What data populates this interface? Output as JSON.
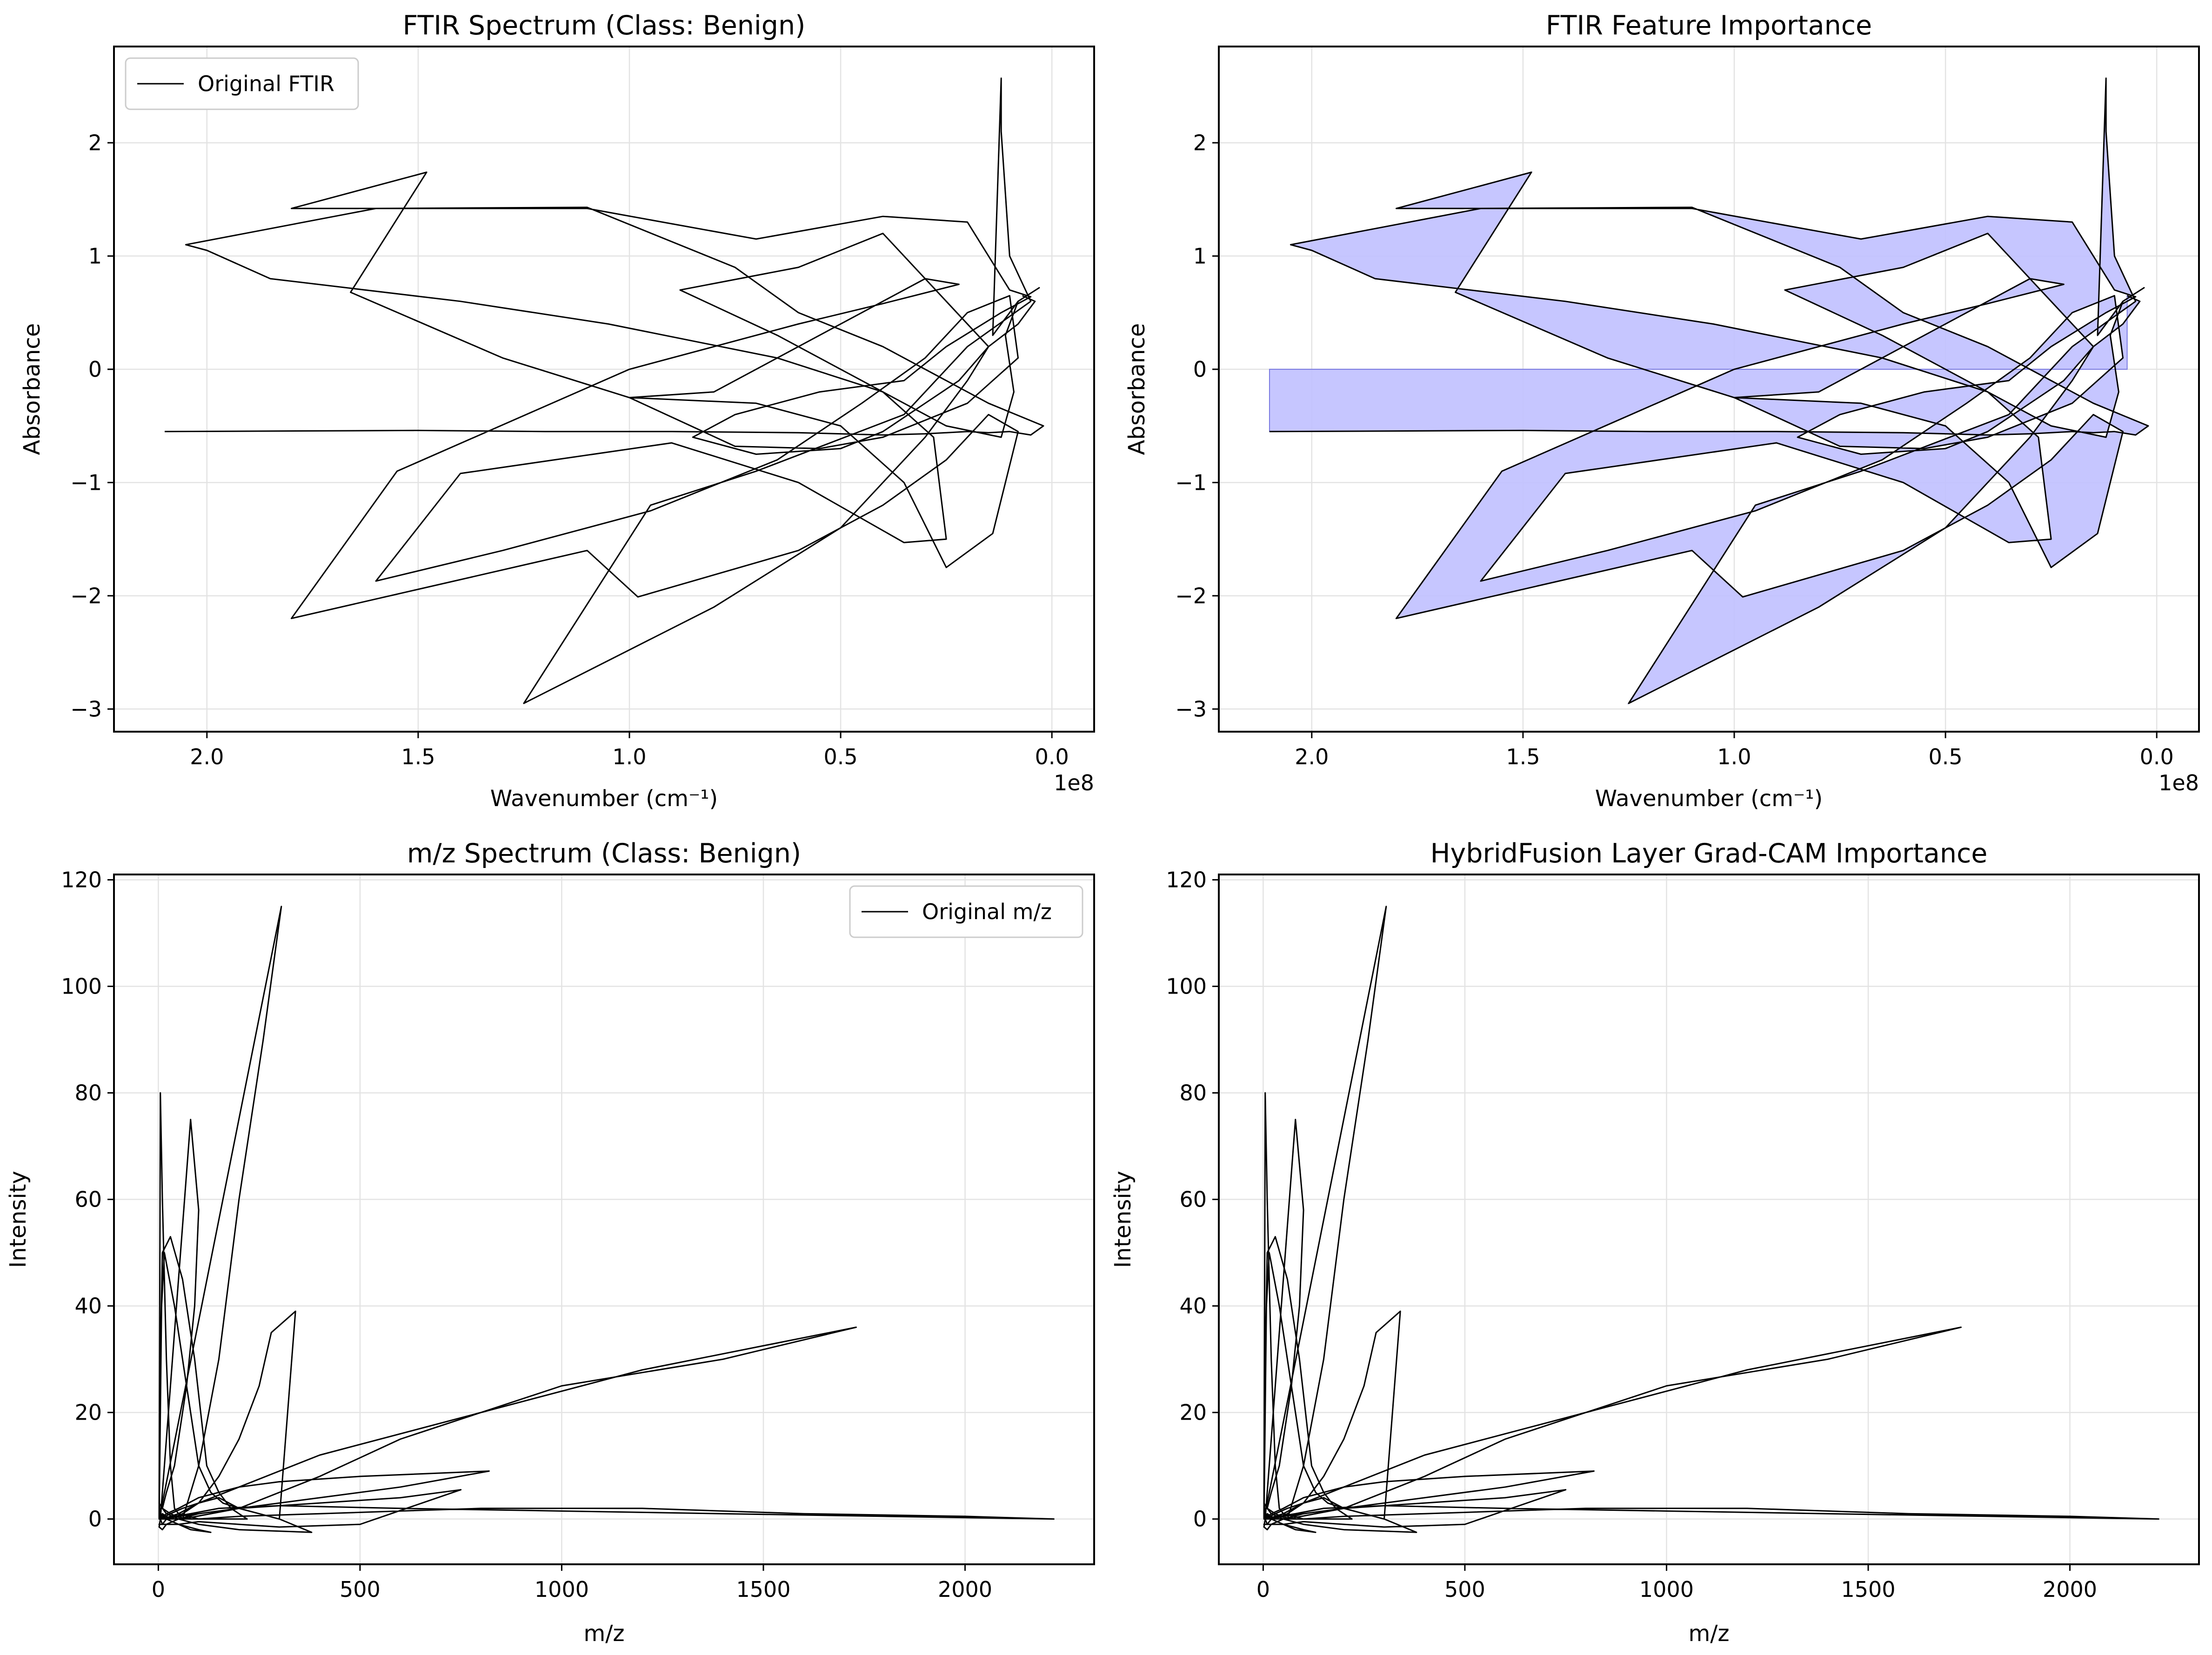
{
  "figure": {
    "background": "#ffffff",
    "line_color": "#000000",
    "fill_color": "#c3c3ff",
    "fill_edge_color": "#7373e0"
  },
  "chart_data": [
    {
      "id": "ftir-spectrum",
      "type": "line",
      "title": "FTIR Spectrum (Class: Benign)",
      "xlabel": "Wavenumber (cm⁻¹)",
      "ylabel": "Absorbance",
      "x_offset_label": "1e8",
      "x_inverted": true,
      "xlim": [
        222000000,
        -10000000
      ],
      "ylim": [
        -3.2,
        2.85
      ],
      "xticks": [
        200000000,
        150000000,
        100000000,
        50000000,
        0
      ],
      "xtick_labels": [
        "2.0",
        "1.5",
        "1.0",
        "0.5",
        "0.0"
      ],
      "yticks": [
        -3,
        -2,
        -1,
        0,
        1,
        2
      ],
      "ytick_labels": [
        "−3",
        "−2",
        "−1",
        "0",
        "1",
        "2"
      ],
      "grid": true,
      "legend": {
        "position": "top-left",
        "entries": [
          "Original FTIR"
        ]
      },
      "fill_to_zero": false,
      "series": [
        {
          "name": "Original FTIR",
          "x": [
            210000000,
            150000000,
            120000000,
            90000000,
            60000000,
            40000000,
            30000000,
            20000000,
            15000000,
            10000000,
            5000000,
            2000000,
            15000000,
            40000000,
            60000000,
            75000000,
            110000000,
            160000000,
            205000000,
            200000000,
            185000000,
            140000000,
            105000000,
            65000000,
            40000000,
            25000000,
            12000000,
            9000000,
            11000000,
            8000000,
            3000000,
            8000000,
            14000000,
            12000000,
            12000000,
            10000000,
            5000000,
            20000000,
            35000000,
            70000000,
            95000000,
            125000000,
            80000000,
            50000000,
            30000000,
            20000000,
            15000000,
            25000000,
            40000000,
            60000000,
            88000000,
            65000000,
            40000000,
            28000000,
            25000000,
            35000000,
            60000000,
            90000000,
            140000000,
            160000000,
            130000000,
            95000000,
            65000000,
            45000000,
            30000000,
            20000000,
            10000000,
            8000000,
            20000000,
            40000000,
            55000000,
            75000000,
            100000000,
            80000000,
            60000000,
            45000000,
            30000000,
            22000000,
            40000000,
            60000000,
            80000000,
            100000000,
            155000000,
            180000000,
            110000000,
            98000000,
            60000000,
            40000000,
            25000000,
            15000000,
            8000000,
            14000000,
            25000000,
            35000000,
            50000000,
            70000000,
            100000000,
            130000000,
            166000000,
            148000000,
            180000000,
            110000000,
            70000000,
            40000000,
            20000000,
            10000000,
            5000000,
            12000000,
            25000000,
            35000000,
            55000000,
            75000000,
            85000000,
            70000000,
            50000000,
            40000000,
            30000000,
            22000000,
            15000000,
            8000000,
            4000000,
            7000000
          ],
          "y": [
            -0.55,
            -0.54,
            -0.55,
            -0.55,
            -0.56,
            -0.58,
            -0.57,
            -0.55,
            -0.56,
            -0.55,
            -0.58,
            -0.5,
            -0.3,
            0.2,
            0.5,
            0.9,
            1.43,
            1.42,
            1.1,
            1.05,
            0.8,
            0.6,
            0.4,
            0.1,
            -0.2,
            -0.5,
            -0.6,
            -0.2,
            0.3,
            0.6,
            0.72,
            0.6,
            0.3,
            2.57,
            2.1,
            1.0,
            0.6,
            0.2,
            -0.4,
            -0.9,
            -1.2,
            -2.95,
            -2.1,
            -1.4,
            -0.6,
            -0.1,
            0.2,
            0.6,
            1.2,
            0.9,
            0.7,
            0.3,
            -0.2,
            -0.6,
            -1.5,
            -1.53,
            -1.0,
            -0.65,
            -0.92,
            -1.87,
            -1.6,
            -1.25,
            -0.8,
            -0.3,
            0.1,
            0.5,
            0.65,
            0.1,
            -0.3,
            -0.6,
            -0.7,
            -0.68,
            -0.25,
            -0.2,
            0.2,
            0.5,
            0.8,
            0.75,
            0.58,
            0.4,
            0.2,
            0.0,
            -0.9,
            -2.2,
            -1.6,
            -2.01,
            -1.6,
            -1.2,
            -0.8,
            -0.4,
            -0.55,
            -1.45,
            -1.75,
            -1.0,
            -0.5,
            -0.3,
            -0.25,
            0.1,
            0.68,
            1.74,
            1.42,
            1.42,
            1.15,
            1.35,
            1.3,
            0.7,
            0.64,
            0.5,
            0.2,
            -0.1,
            -0.2,
            -0.4,
            -0.6,
            -0.75,
            -0.7,
            -0.55,
            -0.3,
            -0.1,
            0.2,
            0.4,
            0.6,
            0.65
          ]
        }
      ]
    },
    {
      "id": "ftir-importance",
      "type": "area",
      "title": "FTIR Feature Importance",
      "xlabel": "Wavenumber (cm⁻¹)",
      "ylabel": "Absorbance",
      "x_offset_label": "1e8",
      "x_inverted": true,
      "xlim": [
        222000000,
        -10000000
      ],
      "ylim": [
        -3.2,
        2.85
      ],
      "xticks": [
        200000000,
        150000000,
        100000000,
        50000000,
        0
      ],
      "xtick_labels": [
        "2.0",
        "1.5",
        "1.0",
        "0.5",
        "0.0"
      ],
      "yticks": [
        -3,
        -2,
        -1,
        0,
        1,
        2
      ],
      "ytick_labels": [
        "−3",
        "−2",
        "−1",
        "0",
        "1",
        "2"
      ],
      "grid": true,
      "legend": null,
      "fill_to_zero": true,
      "same_series_as": "ftir-spectrum"
    },
    {
      "id": "mz-spectrum",
      "type": "line",
      "title": "m/z Spectrum (Class: Benign)",
      "xlabel": "m/z",
      "ylabel": "Intensity",
      "x_inverted": false,
      "xlim": [
        -110,
        2320
      ],
      "ylim": [
        -8.5,
        121
      ],
      "xticks": [
        0,
        500,
        1000,
        1500,
        2000
      ],
      "xtick_labels": [
        "0",
        "500",
        "1000",
        "1500",
        "2000"
      ],
      "yticks": [
        0,
        20,
        40,
        60,
        80,
        100,
        120
      ],
      "ytick_labels": [
        "0",
        "20",
        "40",
        "60",
        "80",
        "100",
        "120"
      ],
      "grid": true,
      "legend": {
        "position": "top-right",
        "entries": [
          "Original m/z"
        ]
      },
      "fill_to_zero": false,
      "series": [
        {
          "name": "Original m/z",
          "x": [
            2,
            5,
            10,
            20,
            30,
            40,
            60,
            80,
            100,
            150,
            200,
            260,
            305,
            2,
            5,
            10,
            30,
            60,
            90,
            120,
            150,
            180,
            200,
            220,
            2,
            5,
            8,
            15,
            40,
            60,
            80,
            100,
            130,
            160,
            200,
            250,
            300,
            340,
            280,
            250,
            200,
            150,
            100,
            60,
            30,
            10,
            5,
            80,
            100,
            90,
            70,
            40,
            20,
            10,
            30,
            60,
            200,
            400,
            600,
            1000,
            1400,
            1730,
            1200,
            800,
            400,
            200,
            100,
            50,
            20,
            10,
            50,
            100,
            200,
            400,
            800,
            1200,
            1600,
            2000,
            2220,
            1800,
            1400,
            1000,
            600,
            300,
            150,
            80,
            40,
            20,
            10,
            2,
            50,
            100,
            200,
            300,
            500,
            750,
            600,
            400,
            200,
            100,
            50,
            20,
            10,
            5,
            20,
            50,
            100,
            200,
            300,
            500,
            820,
            600,
            400,
            200,
            100,
            50,
            20,
            10,
            2,
            5,
            30,
            60,
            100,
            150,
            200,
            300,
            380,
            200,
            100,
            50,
            20,
            10,
            2,
            5,
            20,
            50,
            100,
            130,
            80,
            50,
            20,
            10
          ],
          "y": [
            0,
            80,
            60,
            30,
            10,
            2,
            0,
            5,
            10,
            30,
            60,
            90,
            115,
            0,
            30,
            50,
            53,
            45,
            30,
            10,
            5,
            2,
            1,
            0,
            0,
            20,
            40,
            50,
            40,
            30,
            20,
            10,
            5,
            3,
            2,
            1,
            0,
            39,
            35,
            25,
            15,
            8,
            3,
            1,
            0,
            1,
            0,
            75,
            58,
            40,
            25,
            10,
            5,
            2,
            1,
            0,
            2,
            8,
            15,
            25,
            30,
            36,
            28,
            20,
            12,
            6,
            3,
            1,
            0,
            0,
            1,
            0,
            0.5,
            1,
            2,
            2,
            1,
            0.5,
            0,
            0.5,
            1,
            1.5,
            2,
            2.5,
            2,
            1,
            0.5,
            0,
            -1,
            -1,
            -1,
            -0.5,
            -1,
            -1.5,
            -1,
            5.5,
            4,
            3,
            2,
            1,
            0.5,
            0,
            -1,
            0,
            1,
            2,
            4,
            6,
            7,
            8,
            9,
            6,
            4,
            2,
            1,
            0,
            -1,
            -2,
            -1.5,
            0,
            1,
            2,
            3,
            4,
            2,
            0,
            -2.5,
            -2,
            -1,
            0,
            1,
            2,
            3,
            1,
            0,
            -1,
            -2,
            -2.5,
            -2,
            -1,
            0,
            1
          ]
        }
      ]
    },
    {
      "id": "hybridfusion-gradcam",
      "type": "line",
      "title": "HybridFusion Layer Grad-CAM Importance",
      "xlabel": "m/z",
      "ylabel": "Intensity",
      "x_inverted": false,
      "xlim": [
        -110,
        2320
      ],
      "ylim": [
        -8.5,
        121
      ],
      "xticks": [
        0,
        500,
        1000,
        1500,
        2000
      ],
      "xtick_labels": [
        "0",
        "500",
        "1000",
        "1500",
        "2000"
      ],
      "yticks": [
        0,
        20,
        40,
        60,
        80,
        100,
        120
      ],
      "ytick_labels": [
        "0",
        "20",
        "40",
        "60",
        "80",
        "100",
        "120"
      ],
      "grid": true,
      "legend": null,
      "fill_to_zero": false,
      "same_series_as": "mz-spectrum"
    }
  ]
}
